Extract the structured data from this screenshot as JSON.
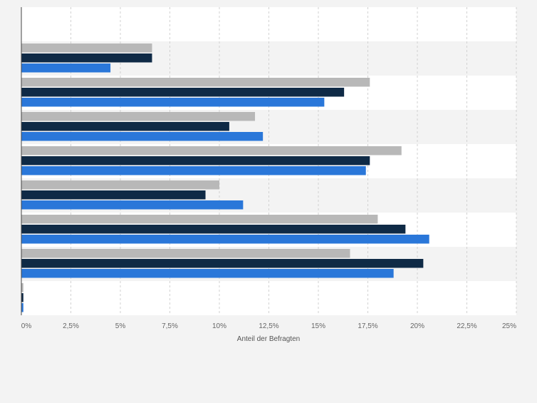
{
  "chart_data": {
    "type": "bar",
    "orientation": "horizontal",
    "categories": [
      "",
      "",
      "",
      "",
      "",
      "",
      "",
      ""
    ],
    "series": [
      {
        "color": "#b8b8b8",
        "values": [
          6.6,
          17.6,
          11.8,
          19.2,
          10.0,
          18.0,
          16.6,
          0.1
        ]
      },
      {
        "color": "#0f2a46",
        "values": [
          6.6,
          16.3,
          10.5,
          17.6,
          9.3,
          19.4,
          20.3,
          0.1
        ]
      },
      {
        "color": "#2a77d9",
        "values": [
          4.5,
          15.3,
          12.2,
          17.4,
          11.2,
          20.6,
          18.8,
          0.1
        ]
      }
    ],
    "xlim": [
      0,
      25
    ],
    "x_ticks": [
      "0%",
      "2,5%",
      "5%",
      "7,5%",
      "10%",
      "12,5%",
      "15%",
      "17,5%",
      "20%",
      "22,5%",
      "25%"
    ],
    "xlabel": "Anteil der Befragten",
    "grid": true,
    "legend": "none",
    "colors": {
      "background": "#f3f3f3",
      "plot_background": "#ffffff",
      "band_alternate": "#f3f3f3",
      "grid": "#d2d2d2",
      "axis": "#444444",
      "tick_text": "#666666"
    }
  }
}
